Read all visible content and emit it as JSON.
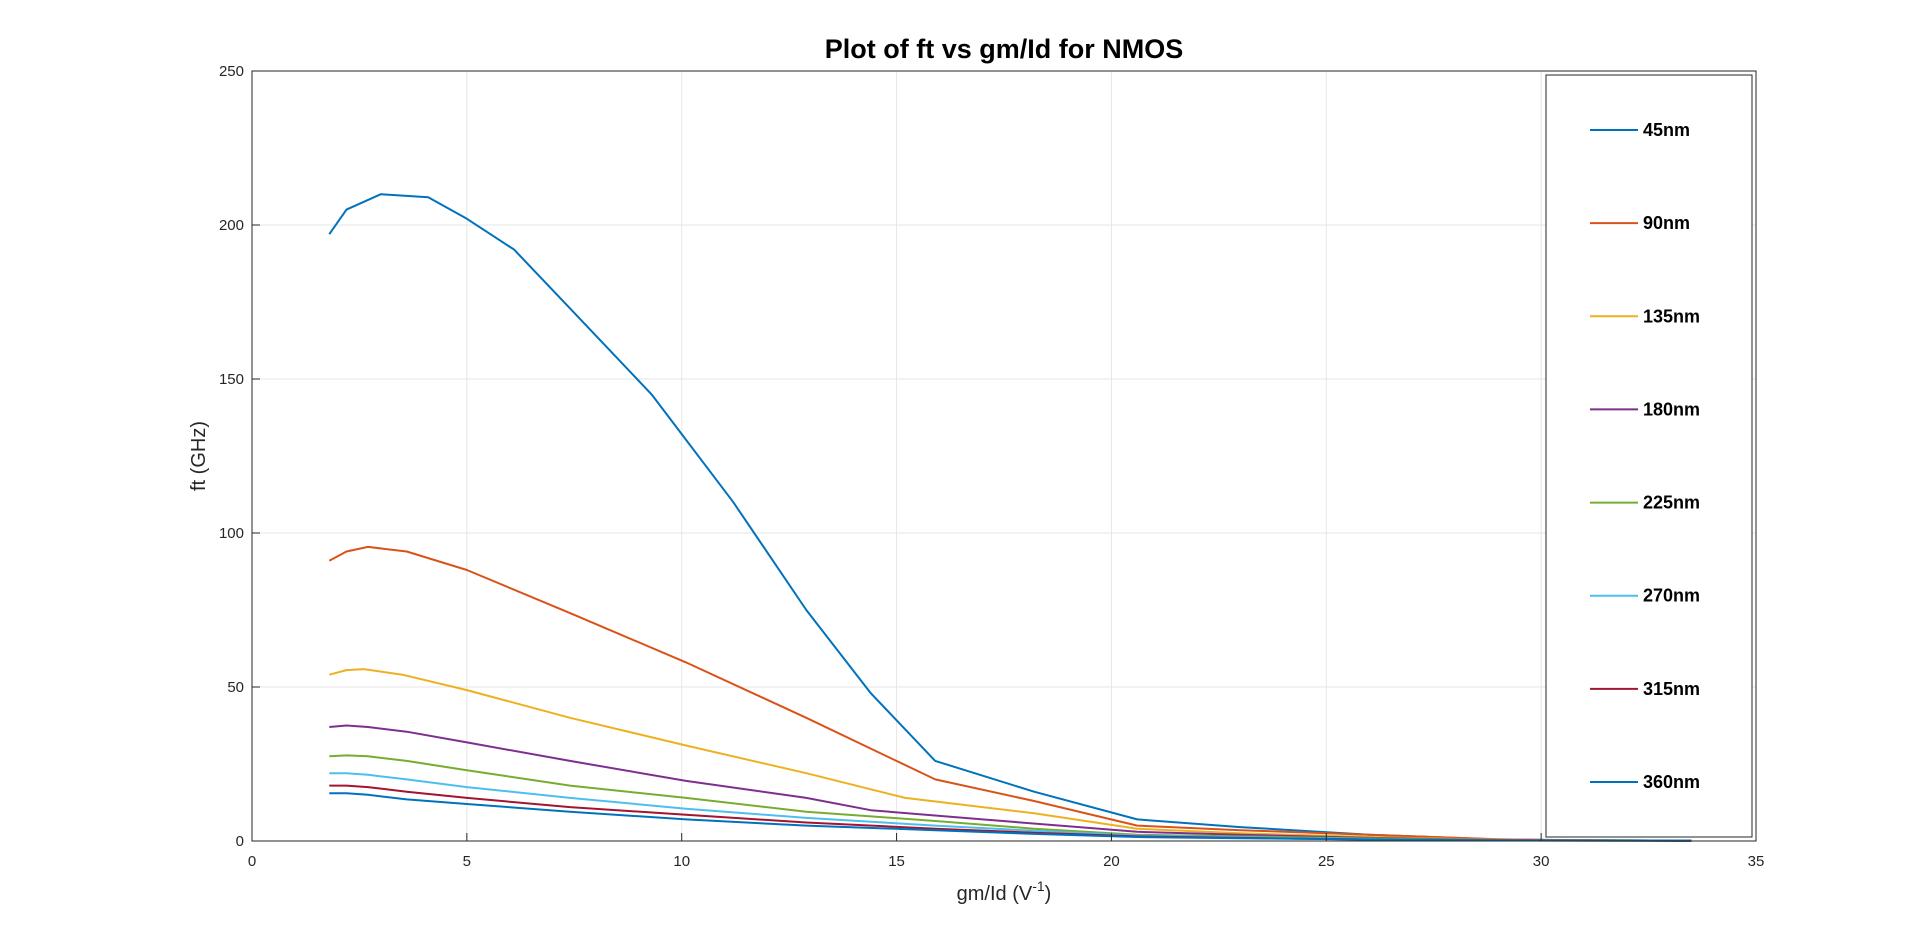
{
  "chart_data": {
    "type": "line",
    "title": "Plot of ft vs gm/Id for NMOS",
    "xlabel": {
      "base": "gm/Id (V",
      "sup": "-1",
      "close": ")"
    },
    "ylabel": "ft (GHz)",
    "xlim": [
      0,
      35
    ],
    "ylim": [
      0,
      250
    ],
    "xticks": [
      0,
      5,
      10,
      15,
      20,
      25,
      30,
      35
    ],
    "yticks": [
      0,
      50,
      100,
      150,
      200,
      250
    ],
    "xtick_labels": [
      "0",
      "5",
      "10",
      "15",
      "20",
      "25",
      "30",
      "35"
    ],
    "ytick_labels": [
      "0",
      "50",
      "100",
      "150",
      "200",
      "250"
    ],
    "grid": true,
    "legend_position": "right",
    "series": [
      {
        "name": "45nm",
        "color": "#0072BD",
        "points": [
          [
            1.8,
            197
          ],
          [
            2.2,
            205
          ],
          [
            3.0,
            210
          ],
          [
            4.1,
            209
          ],
          [
            5.0,
            202
          ],
          [
            6.1,
            192
          ],
          [
            7.6,
            170
          ],
          [
            9.3,
            145
          ],
          [
            11.2,
            110
          ],
          [
            12.9,
            75
          ],
          [
            14.4,
            48
          ],
          [
            15.9,
            26
          ],
          [
            18.2,
            16
          ],
          [
            20.6,
            7
          ],
          [
            23,
            4.5
          ],
          [
            26,
            2
          ],
          [
            29,
            0.5
          ],
          [
            30.5,
            0.3
          ],
          [
            33.5,
            0.1
          ]
        ]
      },
      {
        "name": "90nm",
        "color": "#D95319",
        "points": [
          [
            1.8,
            91
          ],
          [
            2.2,
            94
          ],
          [
            2.7,
            95.5
          ],
          [
            3.6,
            94
          ],
          [
            5.0,
            88
          ],
          [
            7.4,
            74
          ],
          [
            10.1,
            58
          ],
          [
            12.9,
            40
          ],
          [
            15.9,
            20
          ],
          [
            18.2,
            13
          ],
          [
            20.6,
            5
          ],
          [
            23,
            3.5
          ],
          [
            26,
            2
          ],
          [
            29,
            0.6
          ],
          [
            30.5,
            0.3
          ],
          [
            33.5,
            0.1
          ]
        ]
      },
      {
        "name": "135nm",
        "color": "#EDB120",
        "points": [
          [
            1.8,
            54
          ],
          [
            2.2,
            55.5
          ],
          [
            2.6,
            55.8
          ],
          [
            3.5,
            54
          ],
          [
            5.0,
            49
          ],
          [
            7.4,
            40
          ],
          [
            10.1,
            31
          ],
          [
            12.9,
            22
          ],
          [
            15.2,
            14
          ],
          [
            18.2,
            9
          ],
          [
            20.6,
            4
          ],
          [
            23,
            2.5
          ],
          [
            26,
            1.3
          ],
          [
            29,
            0.4
          ],
          [
            33.5,
            0.1
          ]
        ]
      },
      {
        "name": "180nm",
        "color": "#7E2F8E",
        "points": [
          [
            1.8,
            37
          ],
          [
            2.2,
            37.5
          ],
          [
            2.7,
            37
          ],
          [
            3.6,
            35.5
          ],
          [
            5.0,
            32
          ],
          [
            7.4,
            26
          ],
          [
            10.1,
            19.5
          ],
          [
            12.9,
            14
          ],
          [
            14.4,
            10
          ],
          [
            17.0,
            7
          ],
          [
            20.6,
            3
          ],
          [
            23,
            2
          ],
          [
            26,
            1
          ],
          [
            29,
            0.3
          ],
          [
            33.5,
            0.1
          ]
        ]
      },
      {
        "name": "225nm",
        "color": "#77AC30",
        "points": [
          [
            1.8,
            27.5
          ],
          [
            2.2,
            27.8
          ],
          [
            2.7,
            27.5
          ],
          [
            3.6,
            26
          ],
          [
            5.0,
            23
          ],
          [
            7.4,
            18
          ],
          [
            10.1,
            14
          ],
          [
            12.9,
            9.5
          ],
          [
            15.9,
            6.5
          ],
          [
            18.2,
            4
          ],
          [
            20.6,
            2
          ],
          [
            23,
            1.5
          ],
          [
            26,
            0.8
          ],
          [
            29,
            0.2
          ],
          [
            33.5,
            0.1
          ]
        ]
      },
      {
        "name": "270nm",
        "color": "#4DBEEE",
        "points": [
          [
            1.8,
            22
          ],
          [
            2.2,
            22
          ],
          [
            2.7,
            21.5
          ],
          [
            3.6,
            20
          ],
          [
            5.0,
            17.5
          ],
          [
            7.4,
            14
          ],
          [
            10.1,
            10.5
          ],
          [
            12.9,
            7.5
          ],
          [
            15.9,
            5
          ],
          [
            18.2,
            3.3
          ],
          [
            20.6,
            1.8
          ],
          [
            23,
            1.2
          ],
          [
            26,
            0.6
          ],
          [
            29,
            0.2
          ],
          [
            33.5,
            0.1
          ]
        ]
      },
      {
        "name": "315nm",
        "color": "#A2142F",
        "points": [
          [
            1.8,
            18
          ],
          [
            2.2,
            18
          ],
          [
            2.7,
            17.5
          ],
          [
            3.6,
            16
          ],
          [
            5.0,
            14
          ],
          [
            7.4,
            11
          ],
          [
            10.1,
            8.5
          ],
          [
            12.9,
            6
          ],
          [
            15.9,
            4
          ],
          [
            18.2,
            2.7
          ],
          [
            20.6,
            1.5
          ],
          [
            23,
            1
          ],
          [
            26,
            0.5
          ],
          [
            29,
            0.2
          ],
          [
            33.5,
            0.1
          ]
        ]
      },
      {
        "name": "360nm",
        "color": "#0072BD",
        "points": [
          [
            1.8,
            15.5
          ],
          [
            2.2,
            15.5
          ],
          [
            2.7,
            15
          ],
          [
            3.6,
            13.5
          ],
          [
            5.0,
            12
          ],
          [
            7.4,
            9.5
          ],
          [
            10.1,
            7
          ],
          [
            12.9,
            5
          ],
          [
            15.9,
            3.5
          ],
          [
            18.2,
            2.3
          ],
          [
            20.6,
            1.3
          ],
          [
            23,
            0.9
          ],
          [
            26,
            0.5
          ],
          [
            29,
            0.2
          ],
          [
            33.5,
            0.1
          ]
        ]
      }
    ]
  }
}
